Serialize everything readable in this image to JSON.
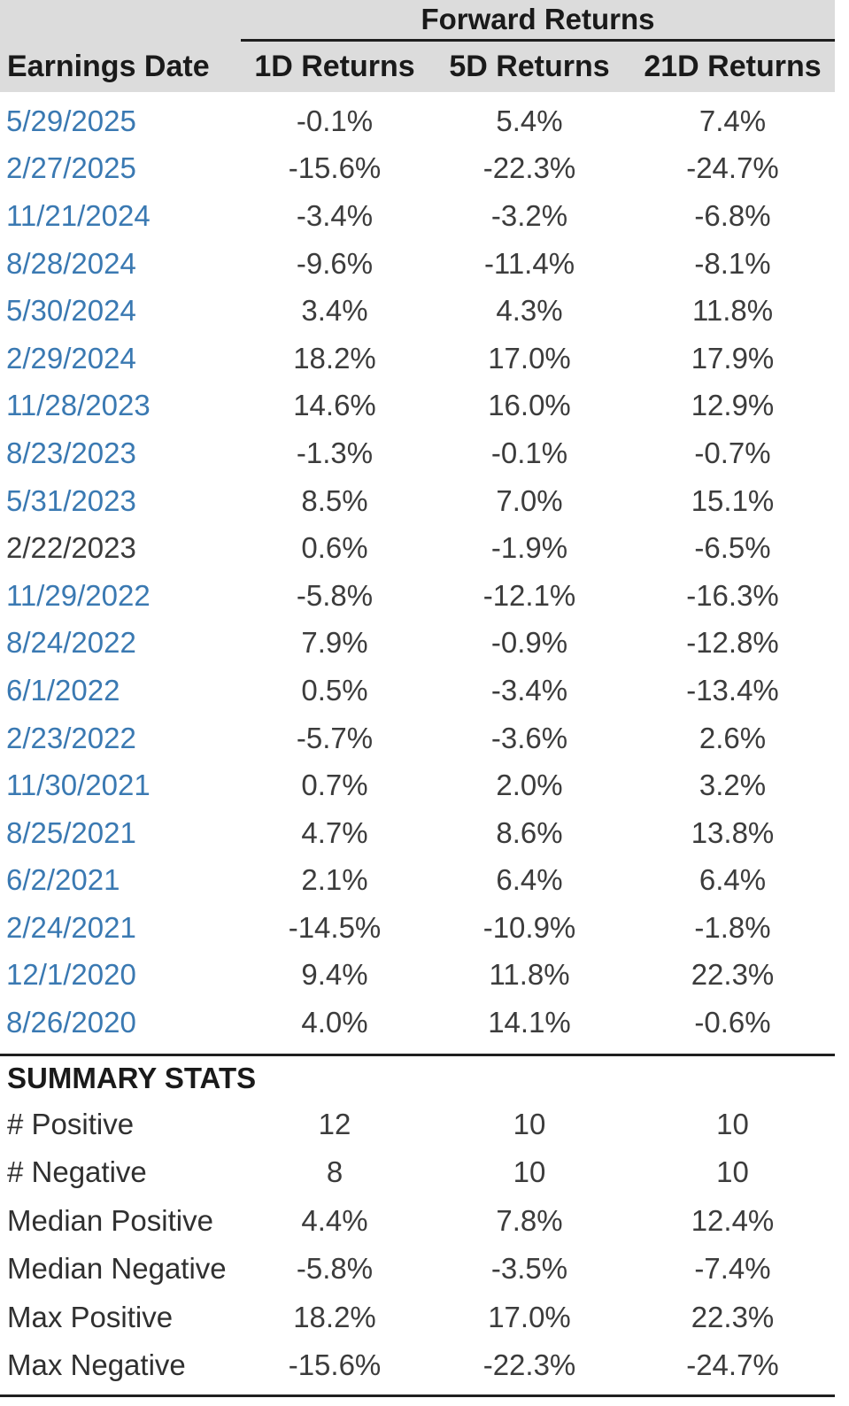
{
  "table": {
    "group_header": "Forward Returns",
    "columns": [
      "Earnings Date",
      "1D Returns",
      "5D Returns",
      "21D Returns"
    ],
    "rows": [
      {
        "date": "5/29/2025",
        "d1": "-0.1%",
        "d5": "5.4%",
        "d21": "7.4%",
        "link": true
      },
      {
        "date": "2/27/2025",
        "d1": "-15.6%",
        "d5": "-22.3%",
        "d21": "-24.7%",
        "link": true
      },
      {
        "date": "11/21/2024",
        "d1": "-3.4%",
        "d5": "-3.2%",
        "d21": "-6.8%",
        "link": true
      },
      {
        "date": "8/28/2024",
        "d1": "-9.6%",
        "d5": "-11.4%",
        "d21": "-8.1%",
        "link": true
      },
      {
        "date": "5/30/2024",
        "d1": "3.4%",
        "d5": "4.3%",
        "d21": "11.8%",
        "link": true
      },
      {
        "date": "2/29/2024",
        "d1": "18.2%",
        "d5": "17.0%",
        "d21": "17.9%",
        "link": true
      },
      {
        "date": "11/28/2023",
        "d1": "14.6%",
        "d5": "16.0%",
        "d21": "12.9%",
        "link": true
      },
      {
        "date": "8/23/2023",
        "d1": "-1.3%",
        "d5": "-0.1%",
        "d21": "-0.7%",
        "link": true
      },
      {
        "date": "5/31/2023",
        "d1": "8.5%",
        "d5": "7.0%",
        "d21": "15.1%",
        "link": true
      },
      {
        "date": "2/22/2023",
        "d1": "0.6%",
        "d5": "-1.9%",
        "d21": "-6.5%",
        "link": false
      },
      {
        "date": "11/29/2022",
        "d1": "-5.8%",
        "d5": "-12.1%",
        "d21": "-16.3%",
        "link": true
      },
      {
        "date": "8/24/2022",
        "d1": "7.9%",
        "d5": "-0.9%",
        "d21": "-12.8%",
        "link": true
      },
      {
        "date": "6/1/2022",
        "d1": "0.5%",
        "d5": "-3.4%",
        "d21": "-13.4%",
        "link": true
      },
      {
        "date": "2/23/2022",
        "d1": "-5.7%",
        "d5": "-3.6%",
        "d21": "2.6%",
        "link": true
      },
      {
        "date": "11/30/2021",
        "d1": "0.7%",
        "d5": "2.0%",
        "d21": "3.2%",
        "link": true
      },
      {
        "date": "8/25/2021",
        "d1": "4.7%",
        "d5": "8.6%",
        "d21": "13.8%",
        "link": true
      },
      {
        "date": "6/2/2021",
        "d1": "2.1%",
        "d5": "6.4%",
        "d21": "6.4%",
        "link": true
      },
      {
        "date": "2/24/2021",
        "d1": "-14.5%",
        "d5": "-10.9%",
        "d21": "-1.8%",
        "link": true
      },
      {
        "date": "12/1/2020",
        "d1": "9.4%",
        "d5": "11.8%",
        "d21": "22.3%",
        "link": true
      },
      {
        "date": "8/26/2020",
        "d1": "4.0%",
        "d5": "14.1%",
        "d21": "-0.6%",
        "link": true
      }
    ],
    "summary_title": "SUMMARY STATS",
    "summary_rows": [
      {
        "label": "# Positive",
        "d1": "12",
        "d5": "10",
        "d21": "10"
      },
      {
        "label": "# Negative",
        "d1": "8",
        "d5": "10",
        "d21": "10"
      },
      {
        "label": "Median Positive",
        "d1": "4.4%",
        "d5": "7.8%",
        "d21": "12.4%"
      },
      {
        "label": "Median Negative",
        "d1": "-5.8%",
        "d5": "-3.5%",
        "d21": "-7.4%"
      },
      {
        "label": "Max Positive",
        "d1": "18.2%",
        "d5": "17.0%",
        "d21": "22.3%"
      },
      {
        "label": "Max Negative",
        "d1": "-15.6%",
        "d5": "-22.3%",
        "d21": "-24.7%"
      }
    ],
    "colors": {
      "header_bg": "#dcdcdc",
      "rule": "#1f1f1f",
      "date_link": "#3a79b2",
      "value_text": "#3c3c3c"
    }
  }
}
